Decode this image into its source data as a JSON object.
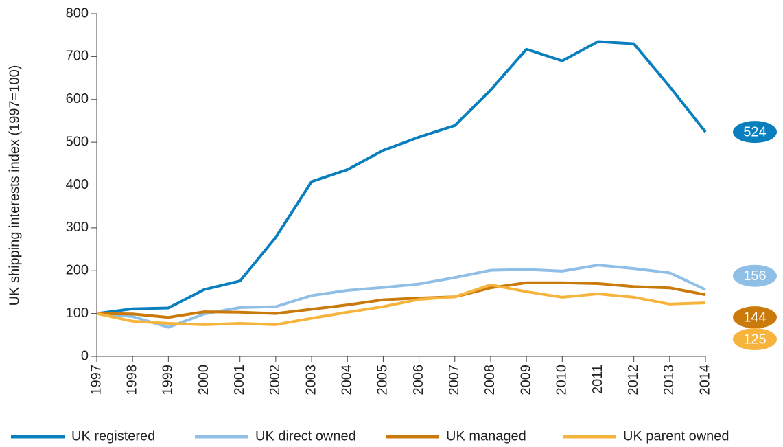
{
  "chart_data": {
    "type": "line",
    "y_label": "UK shipping interests index (1997=100)",
    "categories": [
      "1997",
      "1998",
      "1999",
      "2000",
      "2001",
      "2002",
      "2003",
      "2004",
      "2005",
      "2006",
      "2007",
      "2008",
      "2009",
      "2010",
      "2011",
      "2012",
      "2013",
      "2014"
    ],
    "series": [
      {
        "name": "UK registered",
        "color": "#0a7fbd",
        "values": [
          100,
          111,
          113,
          156,
          176,
          278,
          408,
          436,
          481,
          512,
          539,
          622,
          717,
          690,
          735,
          730,
          630,
          524
        ]
      },
      {
        "name": "UK direct owned",
        "color": "#8fbfe6",
        "values": [
          100,
          93,
          68,
          99,
          114,
          116,
          142,
          154,
          161,
          169,
          184,
          201,
          203,
          199,
          213,
          205,
          195,
          156
        ]
      },
      {
        "name": "UK managed",
        "color": "#c97a0a",
        "values": [
          100,
          99,
          91,
          104,
          103,
          100,
          110,
          120,
          132,
          136,
          139,
          160,
          172,
          172,
          170,
          163,
          160,
          144
        ]
      },
      {
        "name": "UK parent owned",
        "color": "#f6b43c",
        "values": [
          100,
          82,
          77,
          74,
          77,
          74,
          89,
          103,
          116,
          133,
          139,
          167,
          151,
          138,
          146,
          138,
          122,
          125
        ]
      }
    ],
    "ylim": [
      0,
      800
    ],
    "yticks": [
      0,
      100,
      200,
      300,
      400,
      500,
      600,
      700,
      800
    ],
    "grid": false
  }
}
